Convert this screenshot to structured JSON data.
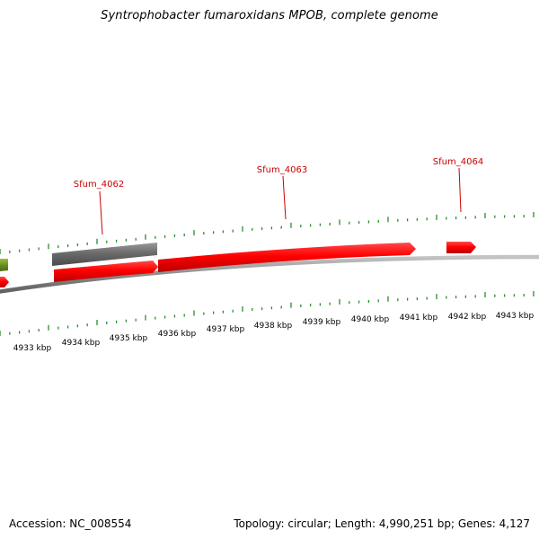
{
  "title": "Syntrophobacter fumaroxidans MPOB, complete genome",
  "footer": {
    "accession": "Accession: NC_008554",
    "summary": "Topology: circular; Length: 4,990,251 bp; Genes: 4,127"
  },
  "genes": [
    {
      "label": "Sfum_4062"
    },
    {
      "label": "Sfum_4063"
    },
    {
      "label": "Sfum_4064"
    }
  ],
  "axis_labels": [
    "4933 kbp",
    "4934 kbp",
    "4935 kbp",
    "4936 kbp",
    "4937 kbp",
    "4938 kbp",
    "4939 kbp",
    "4940 kbp",
    "4941 kbp",
    "4942 kbp",
    "4943 kbp"
  ],
  "colors": {
    "gene_forward": "#e00000",
    "gene_label": "#cc0000",
    "pseudo_gene": "#6b6b6b",
    "neighbor_gene": "#6b8e23",
    "backbone": "#8a8a8a",
    "tick": "#2e8b2e"
  }
}
